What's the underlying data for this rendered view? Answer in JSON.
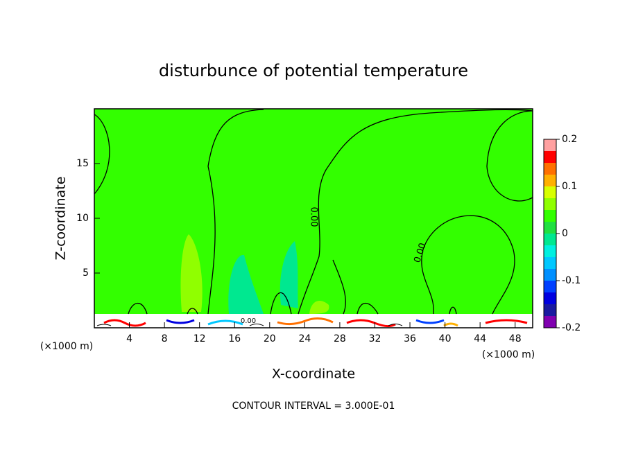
{
  "chart_data": {
    "type": "contour",
    "title": "disturbunce of potential temperature",
    "xlabel": "X-coordinate",
    "ylabel": "Z-coordinate",
    "x_unit": "(×1000 m)",
    "annotation": "CONTOUR INTERVAL = 3.000E-01",
    "contour_labels": [
      "0.00",
      "0.00",
      "0.00"
    ],
    "xlim": [
      0,
      50
    ],
    "ylim": [
      0,
      20
    ],
    "xticks": [
      4,
      8,
      12,
      16,
      20,
      24,
      28,
      32,
      36,
      40,
      44,
      48
    ],
    "yticks": [
      5,
      10,
      15
    ],
    "colorbar": {
      "levels": [
        -0.2,
        -0.175,
        -0.15,
        -0.125,
        -0.1,
        -0.075,
        -0.05,
        -0.025,
        0,
        0.025,
        0.05,
        0.075,
        0.1,
        0.125,
        0.15,
        0.175,
        0.2
      ],
      "colors": [
        "#8000b0",
        "#1a1aa0",
        "#0000e0",
        "#0040ff",
        "#0090ff",
        "#00c8ff",
        "#00f0e0",
        "#00e890",
        "#20e040",
        "#33ff00",
        "#90ff00",
        "#d8ff00",
        "#ffb000",
        "#ff7000",
        "#ff0000",
        "#ffa0a0"
      ],
      "ticks": [
        -0.2,
        -0.1,
        0,
        0.1,
        0.2
      ]
    }
  }
}
